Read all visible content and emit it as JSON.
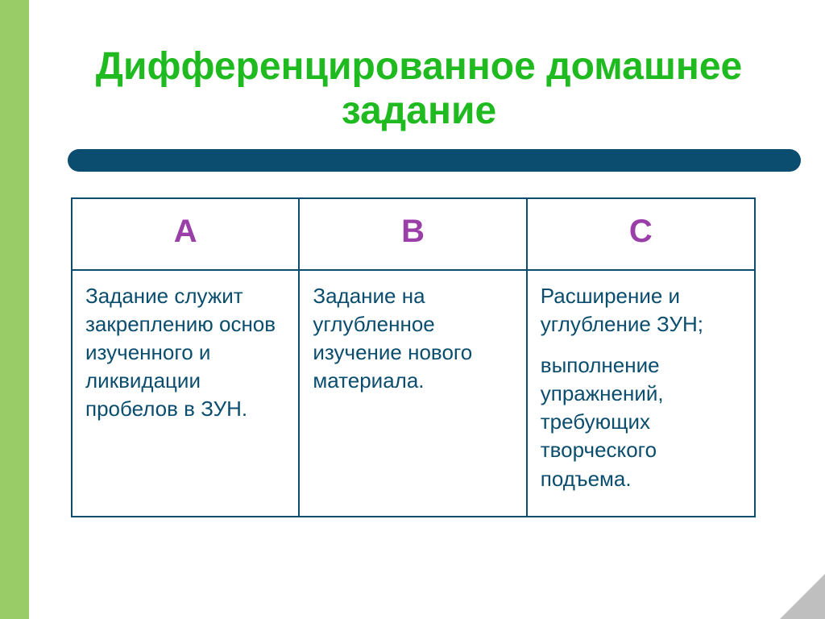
{
  "slide": {
    "background_color": "#ffffff",
    "accent_bar_color": "#99cc66",
    "title": {
      "text": "Дифференцированное домашнее задание",
      "color": "#1fba1f",
      "fontsize": 48,
      "fontweight": "bold",
      "align": "center"
    },
    "underline": {
      "color": "#0a4d6e",
      "height": 28,
      "radius": 14
    },
    "table": {
      "type": "table",
      "border_color": "#0a4d6e",
      "header_color": "#9b3fa8",
      "header_fontsize": 40,
      "cell_color": "#0a4d6e",
      "cell_fontsize": 26,
      "columns": [
        "A",
        "B",
        "C"
      ],
      "rows": [
        {
          "a": "Задание служит закреплению основ изученного и ликвидации пробелов в ЗУН.",
          "b": "Задание на углубленное изучение нового материала.",
          "c1": "Расширение и углубление ЗУН;",
          "c2": "выполнение упражнений, требующих творческого подъема."
        }
      ]
    },
    "corner_color": "#bfbfbf"
  }
}
